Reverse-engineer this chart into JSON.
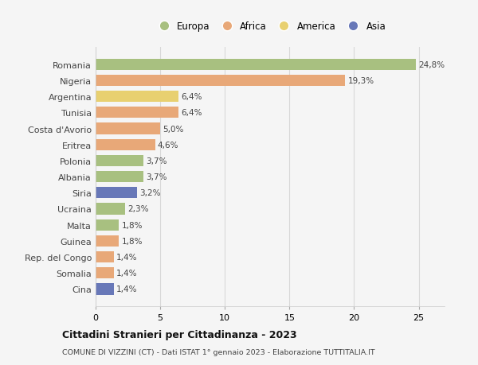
{
  "categories": [
    "Romania",
    "Nigeria",
    "Argentina",
    "Tunisia",
    "Costa d'Avorio",
    "Eritrea",
    "Polonia",
    "Albania",
    "Siria",
    "Ucraina",
    "Malta",
    "Guinea",
    "Rep. del Congo",
    "Somalia",
    "Cina"
  ],
  "values": [
    24.8,
    19.3,
    6.4,
    6.4,
    5.0,
    4.6,
    3.7,
    3.7,
    3.2,
    2.3,
    1.8,
    1.8,
    1.4,
    1.4,
    1.4
  ],
  "colors": [
    "#a8c080",
    "#e8a878",
    "#e8d070",
    "#e8a878",
    "#e8a878",
    "#e8a878",
    "#a8c080",
    "#a8c080",
    "#6878b8",
    "#a8c080",
    "#a8c080",
    "#e8a878",
    "#e8a878",
    "#e8a878",
    "#6878b8"
  ],
  "labels": [
    "24,8%",
    "19,3%",
    "6,4%",
    "6,4%",
    "5,0%",
    "4,6%",
    "3,7%",
    "3,7%",
    "3,2%",
    "2,3%",
    "1,8%",
    "1,8%",
    "1,4%",
    "1,4%",
    "1,4%"
  ],
  "xlim": [
    0,
    27
  ],
  "xticks": [
    0,
    5,
    10,
    15,
    20,
    25
  ],
  "legend_labels": [
    "Europa",
    "Africa",
    "America",
    "Asia"
  ],
  "legend_colors": [
    "#a8c080",
    "#e8a878",
    "#e8d070",
    "#6878b8"
  ],
  "title": "Cittadini Stranieri per Cittadinanza - 2023",
  "subtitle": "COMUNE DI VIZZINI (CT) - Dati ISTAT 1° gennaio 2023 - Elaborazione TUTTITALIA.IT",
  "bg_color": "#f5f5f5",
  "grid_color": "#d8d8d8"
}
